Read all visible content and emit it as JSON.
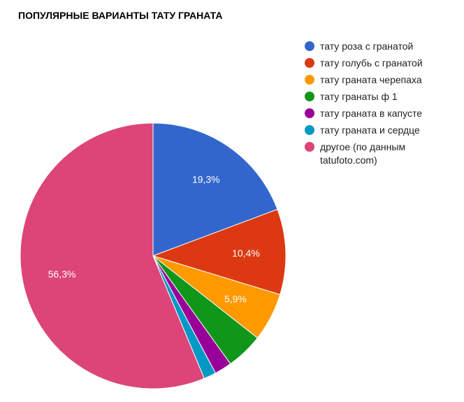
{
  "chart_data": {
    "type": "pie",
    "title": "ПОПУЛЯРНЫЕ ВАРИАНТЫ ТАТУ ГРАНАТА",
    "legend_position": "right",
    "slices": [
      {
        "name": "тату роза с гранатой",
        "value": 19.3,
        "label": "19,3%",
        "color": "#3366cc"
      },
      {
        "name": "тату голубь с гранатой",
        "value": 10.4,
        "label": "10,4%",
        "color": "#dc3912"
      },
      {
        "name": "тату граната черепаха",
        "value": 5.9,
        "label": "5,9%",
        "color": "#ff9900"
      },
      {
        "name": "тату гранаты ф 1",
        "value": 4.5,
        "label": "",
        "color": "#109618"
      },
      {
        "name": "тату граната в капусте",
        "value": 2.1,
        "label": "",
        "color": "#990099"
      },
      {
        "name": "тату граната и сердце",
        "value": 1.5,
        "label": "",
        "color": "#0099c6"
      },
      {
        "name": "другое (по данным tatufoto.com)",
        "value": 56.3,
        "label": "56,3%",
        "color": "#dd4477"
      }
    ]
  }
}
